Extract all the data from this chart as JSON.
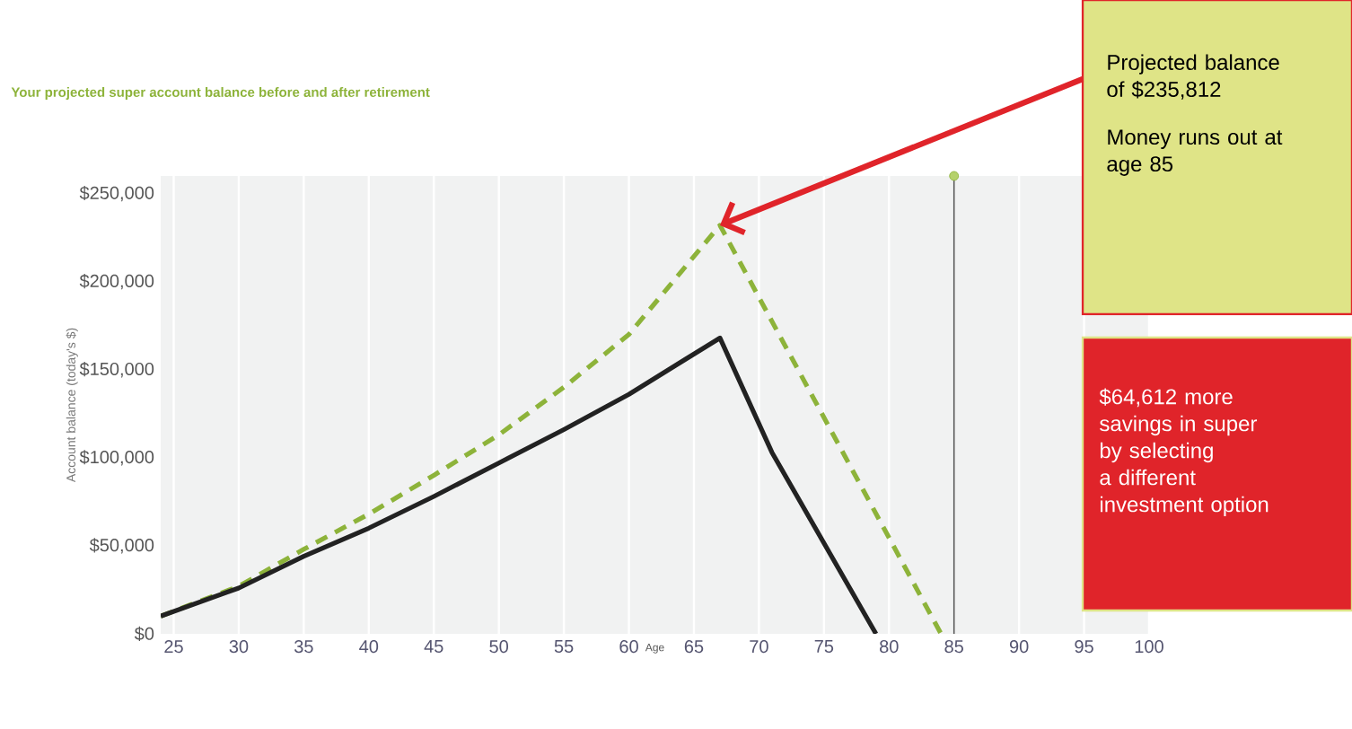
{
  "chart_data": {
    "type": "line",
    "title": "Your projected super account balance before and after retirement",
    "xlabel": "Age",
    "ylabel": "Account balance (today's $)",
    "x": [
      24,
      30,
      35,
      40,
      45,
      50,
      55,
      60,
      67,
      71,
      79
    ],
    "series": [
      {
        "color": "#8db33a",
        "line_style": "dashed",
        "x": [
          24,
          30,
          35,
          40,
          45,
          50,
          55,
          60,
          67,
          84
        ],
        "values": [
          10000,
          27000,
          48000,
          68000,
          90000,
          113000,
          140000,
          170000,
          232000,
          0
        ]
      },
      {
        "color": "#222222",
        "line_style": "solid",
        "values": [
          10000,
          26000,
          44000,
          60000,
          78000,
          97000,
          116000,
          136000,
          168000,
          103000,
          0
        ]
      }
    ],
    "xlim": [
      24,
      100
    ],
    "xticks": [
      25,
      30,
      35,
      40,
      45,
      50,
      55,
      60,
      65,
      70,
      75,
      80,
      85,
      90,
      95,
      100
    ],
    "ylim": [
      0,
      260000
    ],
    "yticks": [
      {
        "value": 0,
        "label": "$0"
      },
      {
        "value": 50000,
        "label": "$50,000"
      },
      {
        "value": 100000,
        "label": "$100,000"
      },
      {
        "value": 150000,
        "label": "$150,000"
      },
      {
        "value": 200000,
        "label": "$200,000"
      },
      {
        "value": 250000,
        "label": "$250,000"
      }
    ],
    "ref_lines": [
      {
        "axis": "x",
        "value": 85,
        "color": "#555555"
      }
    ],
    "annotations": [
      {
        "text": "Projected balance of $235,812",
        "x": 67,
        "y": 232000
      },
      "Money runs out at age 85",
      "$64,612 more savings in super by selecting a different investment option"
    ],
    "grid": "x",
    "marker": "none"
  }
}
